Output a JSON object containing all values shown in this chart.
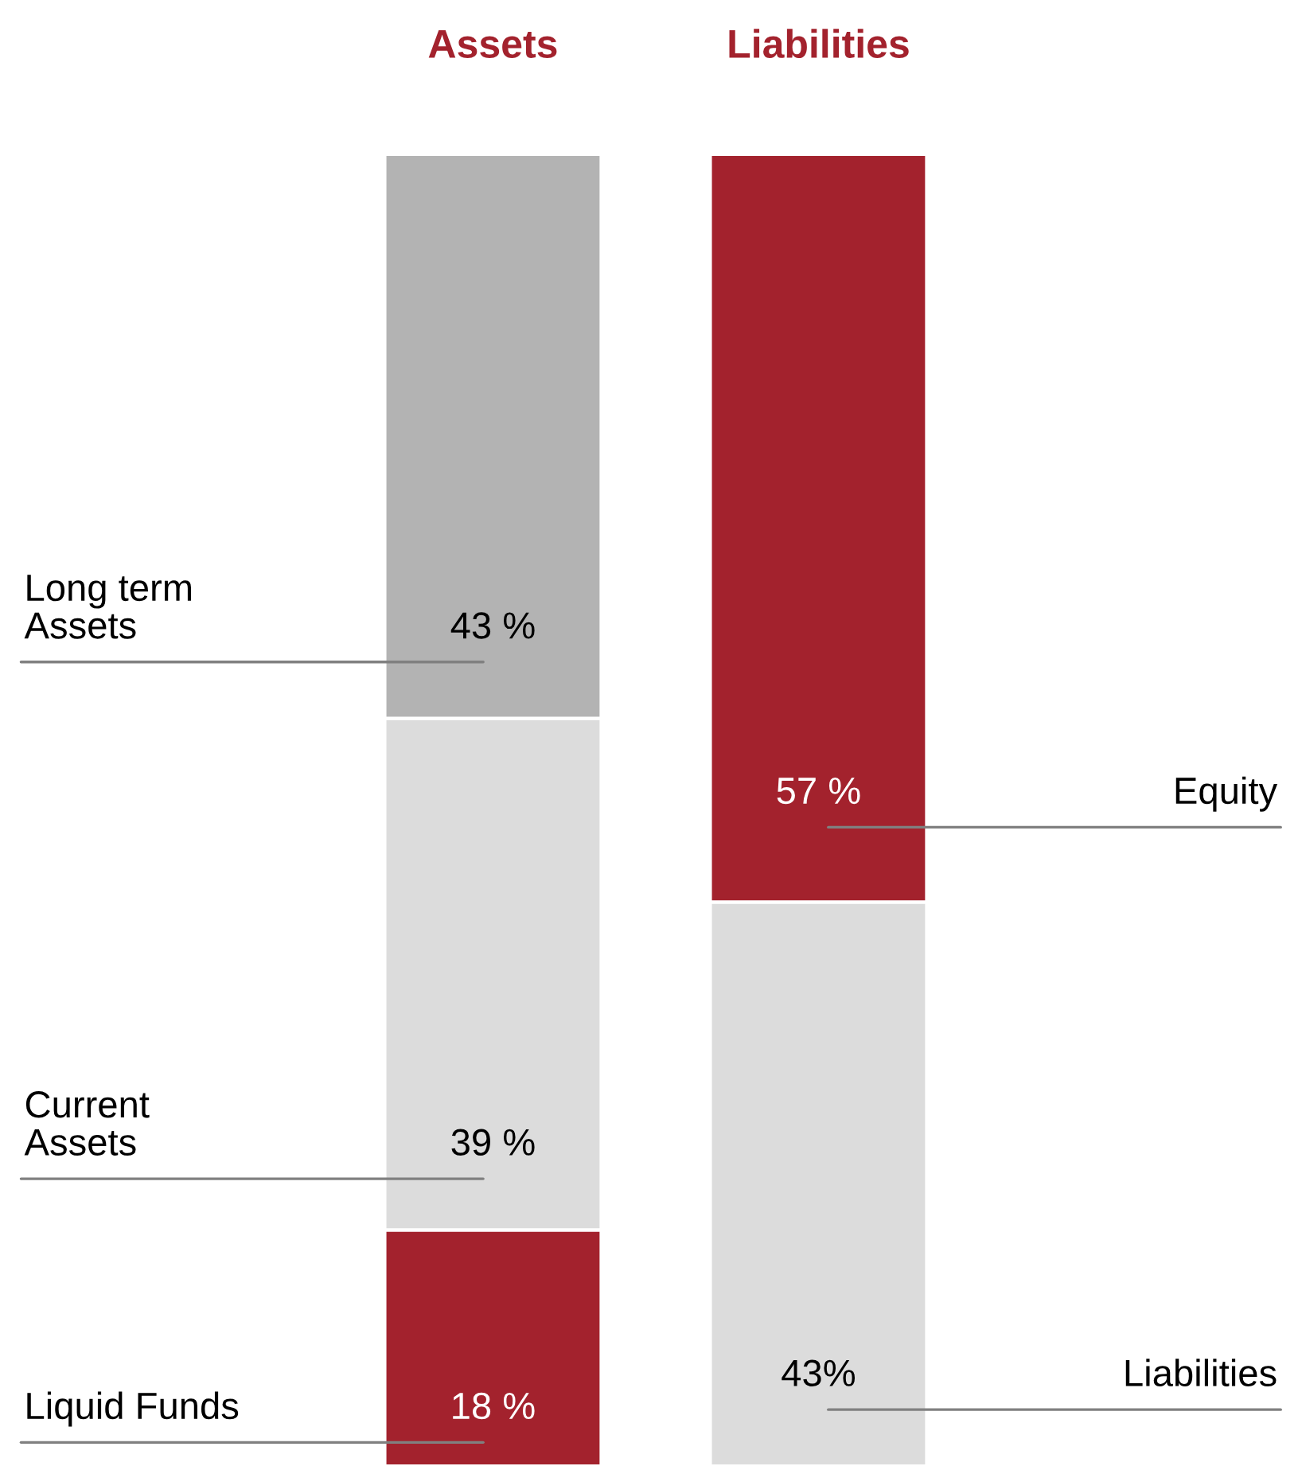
{
  "chart_data": {
    "type": "bar",
    "stacked": true,
    "categories": [
      "Assets",
      "Liabilities"
    ],
    "series": [
      {
        "name": "Liquid Funds",
        "color": "#a3222d",
        "values": [
          18,
          null
        ],
        "value_labels": [
          "18 %",
          null
        ]
      },
      {
        "name": "Current Assets",
        "color": "#dcdcdc",
        "values": [
          39,
          null
        ],
        "value_labels": [
          "39 %",
          null
        ]
      },
      {
        "name": "Long term Assets",
        "color": "#b3b3b3",
        "values": [
          43,
          null
        ],
        "value_labels": [
          "43 %",
          null
        ]
      },
      {
        "name": "Liabilities",
        "color": "#dcdcdc",
        "values": [
          null,
          43
        ],
        "value_labels": [
          null,
          "43%"
        ]
      },
      {
        "name": "Equity",
        "color": "#a3222d",
        "values": [
          null,
          57
        ],
        "value_labels": [
          null,
          "57 %"
        ]
      }
    ],
    "legend": false
  }
}
